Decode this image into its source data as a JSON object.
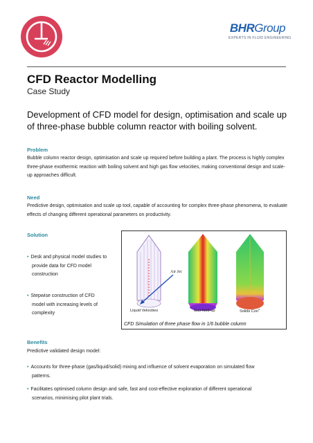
{
  "brand": {
    "name_bold": "BHR",
    "name_light": "Group",
    "tagline": "EXPERTS IN FLUID ENGINEERING",
    "logo_color": "#d8405a",
    "brand_color": "#1f5fb0"
  },
  "title": "CFD Reactor Modelling",
  "subtitle": "Case Study",
  "headline": "Development of CFD model for design, optimisation and scale up of three-phase bubble column reactor with boiling solvent.",
  "problem": {
    "heading": "Problem",
    "text": "Bubble column reactor design, optimisation and scale up required before building a plant. The process is highly complex three-phase exothermic reaction with boiling solvent and high gas flow velocities, making conventional design and scale-up approaches difficult."
  },
  "need": {
    "heading": "Need",
    "text": "Predictive design, optimisation and scale up tool, capable of accounting for complex three-phase phenomena, to evaluate effects of changing different operational parameters on productivity."
  },
  "solution": {
    "heading": "Solution",
    "bullets": [
      [
        "Desk and physical model studies to",
        "provide data for CFD model",
        "construction"
      ],
      [
        "Stepwise construction of CFD",
        "model with increasing levels of",
        "complexity"
      ]
    ]
  },
  "figure": {
    "label_air_jet": "Air Jet",
    "label_liquid": "Liquid Velocities",
    "label_gas": "Gas hold-up",
    "label_solids": "Solids Con",
    "label_solids_sup": "n",
    "caption": "CFD Simulation of three phase flow in 1/6 bubble column"
  },
  "benefits": {
    "heading": "Benefits",
    "intro": "Predictive validated design model:",
    "bullets": [
      [
        "Accounts for three-phase (gas/liquid/solid) mixing and influence of solvent evaporation on simulated flow",
        "patterns."
      ],
      [
        "Facilitates optimised column design and safe, fast and cost-effective exploration of different operational",
        "scenarios, minimising pilot plant trials."
      ]
    ]
  },
  "accent_color": "#2b8a9e"
}
